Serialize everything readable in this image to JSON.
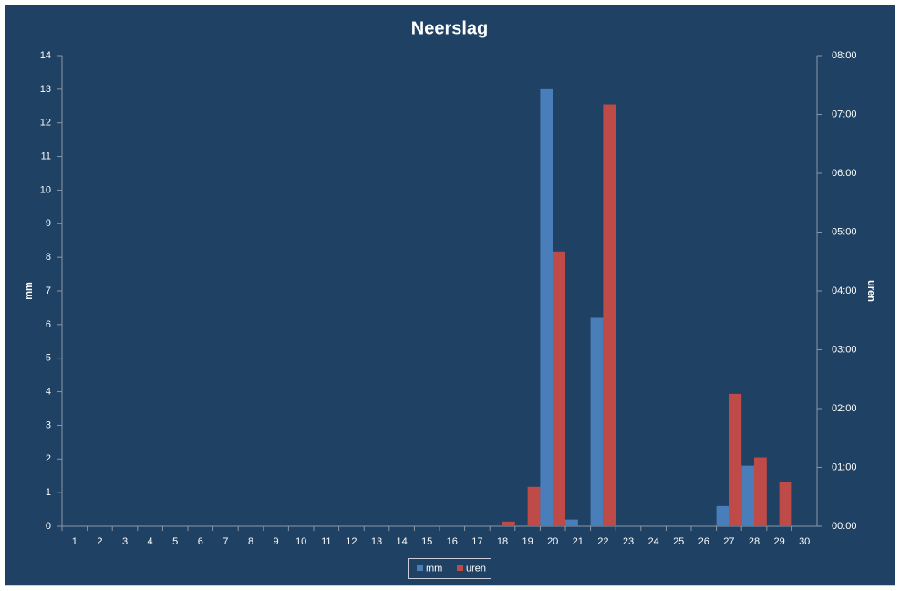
{
  "chart_data": {
    "type": "bar",
    "title": "Neerslag",
    "ylabel": "mm",
    "y2label": "uren",
    "categories": [
      "1",
      "2",
      "3",
      "4",
      "5",
      "6",
      "7",
      "8",
      "9",
      "10",
      "11",
      "12",
      "13",
      "14",
      "15",
      "16",
      "17",
      "18",
      "19",
      "20",
      "21",
      "22",
      "23",
      "24",
      "25",
      "26",
      "27",
      "28",
      "29",
      "30"
    ],
    "series": [
      {
        "name": "mm",
        "color": "#4a7ebb",
        "values": [
          0,
          0,
          0,
          0,
          0,
          0,
          0,
          0,
          0,
          0,
          0,
          0,
          0,
          0,
          0,
          0,
          0,
          0,
          0,
          13,
          0.2,
          6.2,
          0,
          0,
          0,
          0,
          0.6,
          1.8,
          0,
          0
        ]
      },
      {
        "name": "uren",
        "color": "#be4b48",
        "axis": "y2",
        "values": [
          0,
          0,
          0,
          0,
          0,
          0,
          0,
          0,
          0,
          0,
          0,
          0,
          0,
          0,
          0,
          0,
          0,
          0.08,
          0.67,
          4.67,
          0,
          7.17,
          0,
          0,
          0,
          0,
          2.25,
          1.17,
          0.75,
          0
        ]
      }
    ],
    "ylim": [
      0,
      14
    ],
    "yticks": [
      0,
      1,
      2,
      3,
      4,
      5,
      6,
      7,
      8,
      9,
      10,
      11,
      12,
      13,
      14
    ],
    "y2lim": [
      0,
      8
    ],
    "y2ticks": [
      {
        "value": 0,
        "label": "00:00"
      },
      {
        "value": 1,
        "label": "01:00"
      },
      {
        "value": 2,
        "label": "02:00"
      },
      {
        "value": 3,
        "label": "03:00"
      },
      {
        "value": 4,
        "label": "04:00"
      },
      {
        "value": 5,
        "label": "05:00"
      },
      {
        "value": 6,
        "label": "06:00"
      },
      {
        "value": 7,
        "label": "07:00"
      },
      {
        "value": 8,
        "label": "08:00"
      }
    ],
    "grid": false,
    "legend": "bottom"
  }
}
